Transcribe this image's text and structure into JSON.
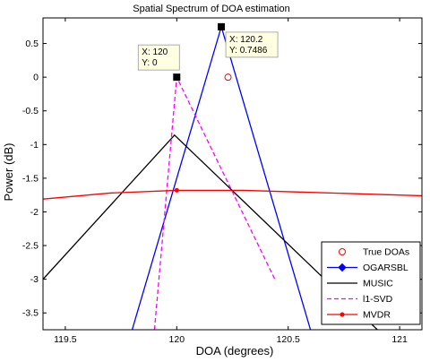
{
  "chart_data": {
    "type": "line",
    "title": "Spatial Spectrum of DOA estimation",
    "xlabel": "DOA (degrees)",
    "ylabel": "Power (dB)",
    "xlim": [
      119.4,
      121.1
    ],
    "ylim": [
      -3.75,
      0.88
    ],
    "xticks": [
      "119.5",
      "120",
      "120.5",
      "121"
    ],
    "yticks": [
      "0.5",
      "0",
      "-0.5",
      "-1",
      "-1.5",
      "-2",
      "-2.5",
      "-3",
      "-3.5"
    ],
    "grid": false,
    "legend_position": "bottom-right",
    "series": [
      {
        "name": "True DOAs",
        "style": "markers",
        "color": "#ff0000",
        "marker": "circle-open",
        "x": [
          120.23
        ],
        "y": [
          0
        ]
      },
      {
        "name": "OGARSBL",
        "style": "line",
        "color": "#0000ff",
        "marker": "diamond",
        "x": [
          119.8,
          120.2,
          120.6
        ],
        "y": [
          -3.75,
          0.7486,
          -3.75
        ]
      },
      {
        "name": "MUSIC",
        "style": "line",
        "color": "#000000",
        "x": [
          119.4,
          119.99,
          120.9
        ],
        "y": [
          -3.0,
          -0.86,
          -3.75
        ]
      },
      {
        "name": "l1-SVD",
        "style": "dashed",
        "color": "#ff00ff",
        "x": [
          119.9,
          120.0,
          120.44
        ],
        "y": [
          -3.75,
          0.0,
          -3.0
        ]
      },
      {
        "name": "MVDR",
        "style": "line",
        "color": "#ff0000",
        "marker": "star",
        "x": [
          119.4,
          119.7,
          120.0,
          120.3,
          120.6,
          120.9,
          121.1
        ],
        "y": [
          -1.81,
          -1.72,
          -1.68,
          -1.68,
          -1.71,
          -1.74,
          -1.76
        ]
      }
    ],
    "datatips": [
      {
        "x": 120,
        "y": 0,
        "x_text": "X: 120",
        "y_text": "Y: 0"
      },
      {
        "x": 120.2,
        "y": 0.7486,
        "x_text": "X: 120.2",
        "y_text": "Y: 0.7486"
      }
    ]
  }
}
